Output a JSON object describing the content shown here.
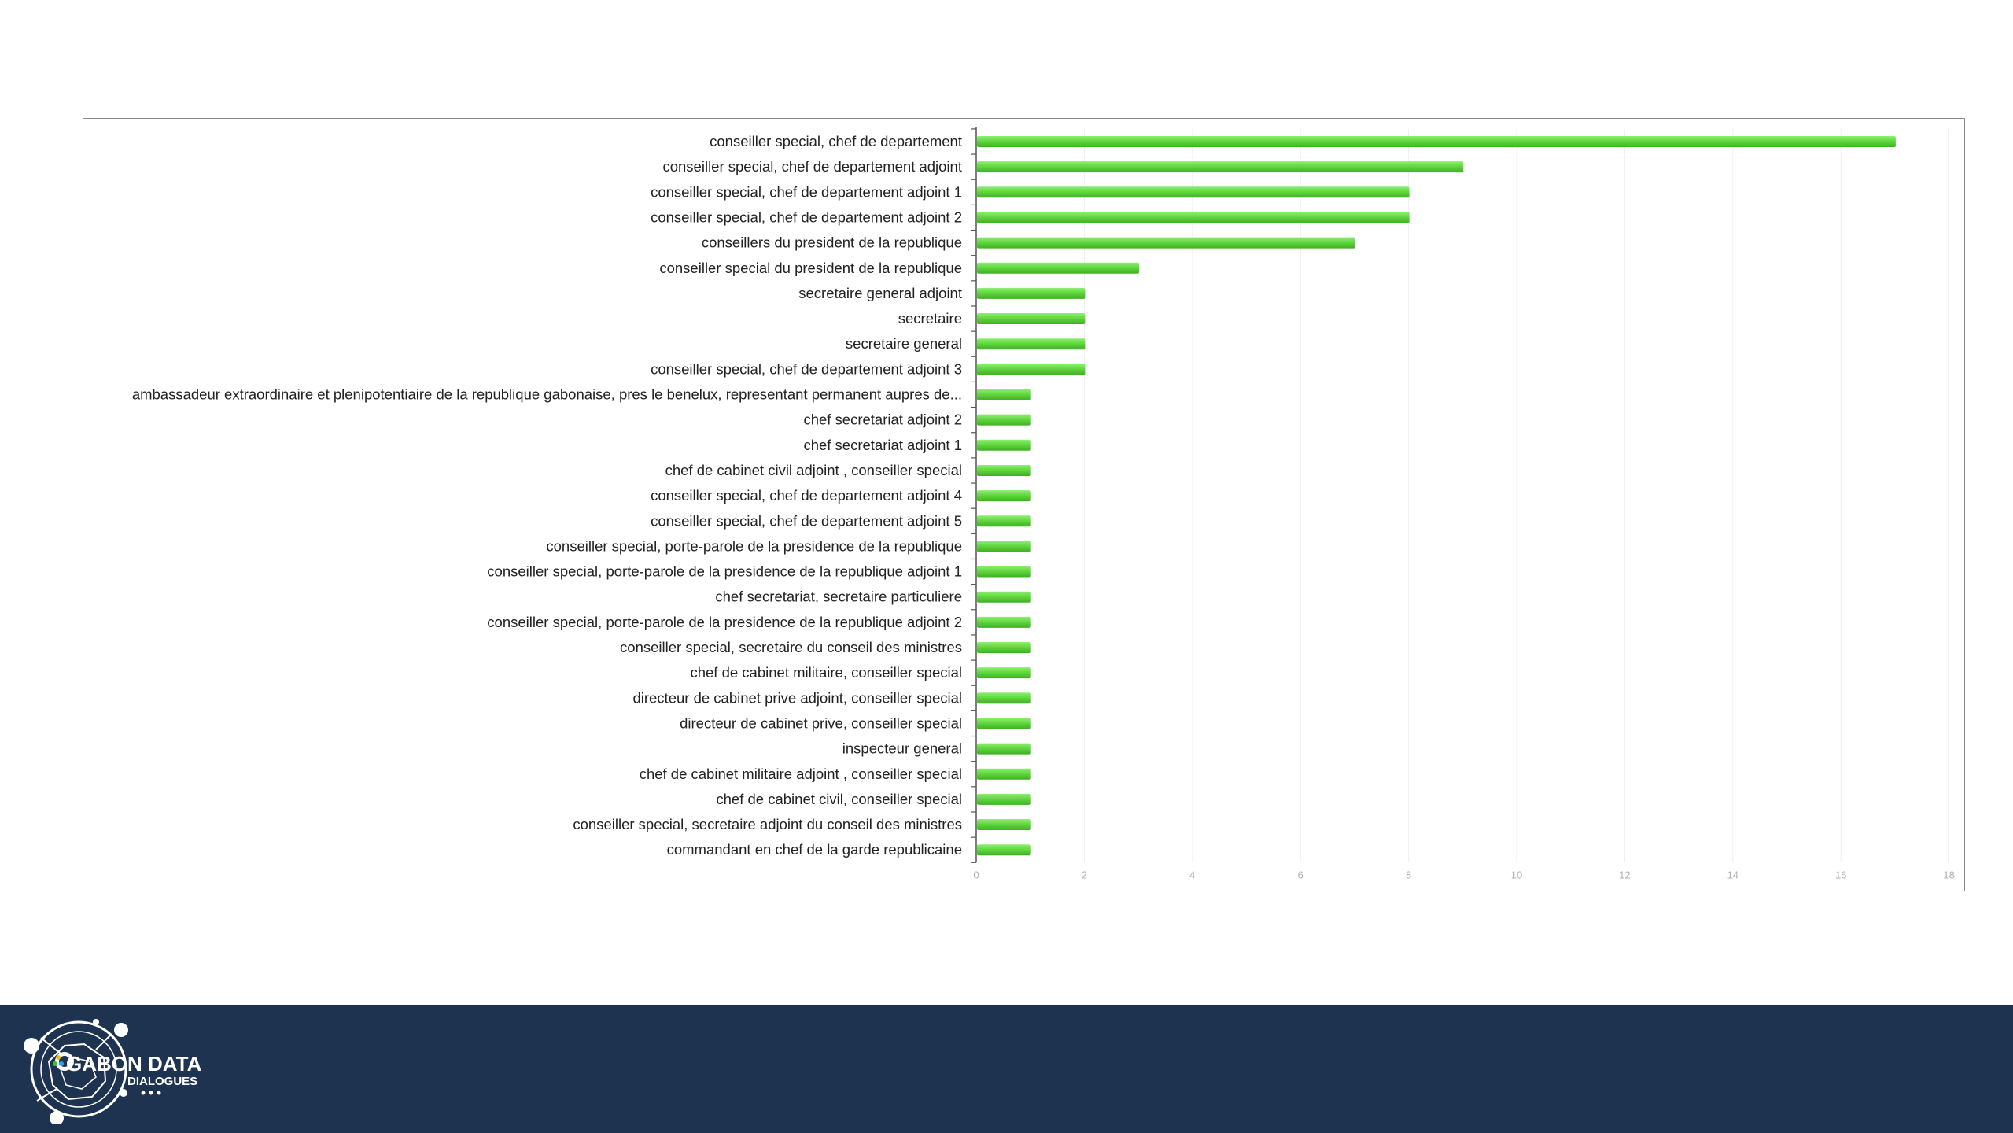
{
  "chart_data": {
    "type": "bar",
    "orientation": "horizontal",
    "categories": [
      "conseiller special, chef de departement",
      "conseiller special, chef de departement adjoint",
      "conseiller special, chef de departement adjoint 1",
      "conseiller special, chef de departement adjoint 2",
      "conseillers du president de la republique",
      "conseiller special du president de la republique",
      "secretaire general adjoint",
      "secretaire",
      "secretaire general",
      "conseiller special, chef de departement adjoint 3",
      "ambassadeur extraordinaire et plenipotentiaire de la republique gabonaise, pres le benelux, representant permanent aupres de...",
      "chef secretariat adjoint 2",
      "chef secretariat adjoint 1",
      "chef de cabinet civil adjoint , conseiller special",
      "conseiller special, chef de departement adjoint 4",
      "conseiller special, chef de departement adjoint 5",
      "conseiller special, porte-parole de la presidence de la republique",
      "conseiller special, porte-parole de la presidence de la republique adjoint 1",
      "chef secretariat, secretaire particuliere",
      "conseiller special, porte-parole de la presidence de la republique adjoint 2",
      "conseiller special, secretaire du conseil des ministres",
      "chef de cabinet militaire, conseiller special",
      "directeur de cabinet prive adjoint, conseiller special",
      "directeur de cabinet prive, conseiller special",
      "inspecteur general",
      "chef de cabinet militaire adjoint , conseiller special",
      "chef de cabinet civil, conseiller special",
      "conseiller special, secretaire adjoint du conseil des ministres",
      "commandant en chef de la garde republicaine"
    ],
    "values": [
      17,
      9,
      8,
      8,
      7,
      3,
      2,
      2,
      2,
      2,
      1,
      1,
      1,
      1,
      1,
      1,
      1,
      1,
      1,
      1,
      1,
      1,
      1,
      1,
      1,
      1,
      1,
      1,
      1
    ],
    "xlim": [
      0,
      18
    ],
    "xticks": [
      0,
      2,
      4,
      6,
      8,
      10,
      12,
      14,
      16,
      18
    ],
    "title": "",
    "xlabel": "",
    "ylabel": "",
    "grid": "vertical",
    "legend": "none",
    "bar_color": "#66dd44"
  },
  "footer": {
    "logo_line1": "GABON DATA",
    "logo_line2": "DIALOGUES",
    "bg_color": "#1e334f"
  }
}
